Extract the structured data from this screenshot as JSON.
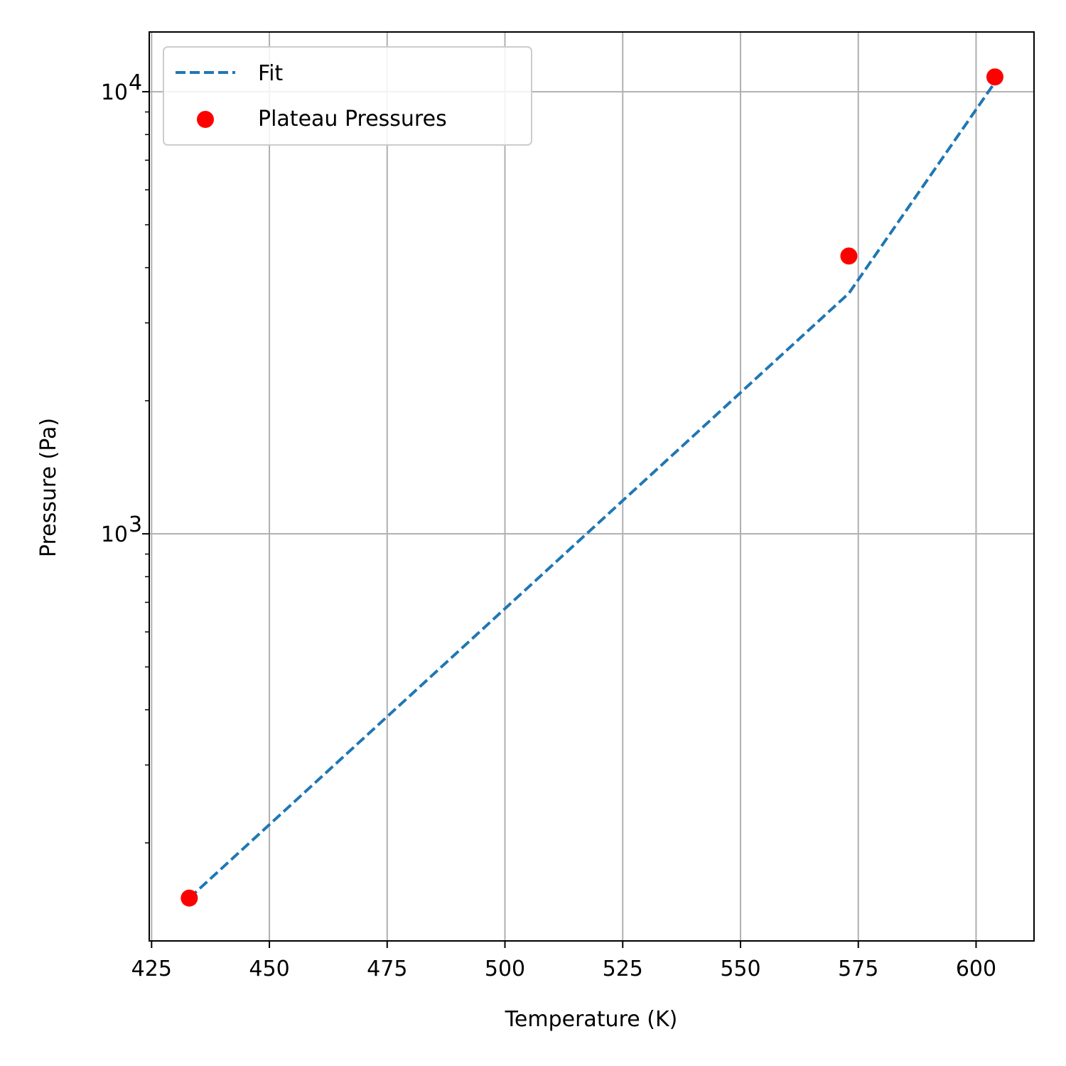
{
  "chart_data": {
    "type": "scatter",
    "title": "",
    "xlabel": "Temperature (K)",
    "ylabel": "Pressure (Pa)",
    "xlim": [
      424.5,
      612.3
    ],
    "ylim": [
      120,
      13650
    ],
    "yscale": "log",
    "grid": true,
    "legend_position": "top-left",
    "x_ticks": [
      425,
      450,
      475,
      500,
      525,
      550,
      575,
      600
    ],
    "x_tick_labels": [
      "425",
      "450",
      "475",
      "500",
      "525",
      "550",
      "575",
      "600"
    ],
    "y_major_ticks": [
      1000,
      10000
    ],
    "y_tick_labels": [
      {
        "base": "10",
        "exp": "3"
      },
      {
        "base": "10",
        "exp": "4"
      }
    ],
    "series": [
      {
        "name": "Fit",
        "kind": "line",
        "style": "dashed",
        "color": "#1f77b4",
        "x": [
          433,
          573,
          604
        ],
        "y": [
          150,
          3500,
          10500
        ]
      },
      {
        "name": "Plateau Pressures",
        "kind": "scatter",
        "color": "#ff0000",
        "x": [
          433,
          573,
          604
        ],
        "y": [
          150,
          4250,
          10800
        ]
      }
    ]
  }
}
